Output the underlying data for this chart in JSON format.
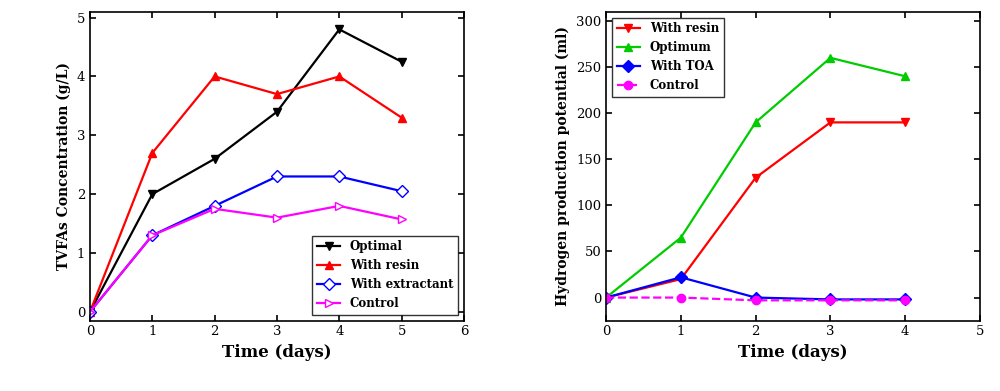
{
  "left": {
    "xlabel": "Time (days)",
    "ylabel": "TVFAs Concentration (g/L)",
    "xlim": [
      0,
      6
    ],
    "ylim": [
      -0.15,
      5.1
    ],
    "xticks": [
      0,
      1,
      2,
      3,
      4,
      5,
      6
    ],
    "yticks": [
      0,
      1,
      2,
      3,
      4,
      5
    ],
    "legend_loc": "lower right",
    "series": [
      {
        "label": "Optimal",
        "color": "#000000",
        "marker": "v",
        "marker_face": "#000000",
        "x": [
          0,
          1,
          2,
          3,
          4,
          5
        ],
        "y": [
          0,
          2.0,
          2.6,
          3.4,
          4.8,
          4.25
        ],
        "linestyle": "-"
      },
      {
        "label": "With resin",
        "color": "#ff0000",
        "marker": "^",
        "marker_face": "#ff0000",
        "x": [
          0,
          1,
          2,
          3,
          4,
          5
        ],
        "y": [
          0,
          2.7,
          4.0,
          3.7,
          4.0,
          3.3
        ],
        "linestyle": "-"
      },
      {
        "label": "With extractant",
        "color": "#0000ff",
        "marker": "D",
        "marker_face": "#ffffff",
        "x": [
          0,
          1,
          2,
          3,
          4,
          5
        ],
        "y": [
          0,
          1.3,
          1.8,
          2.3,
          2.3,
          2.05
        ],
        "linestyle": "-"
      },
      {
        "label": "Control",
        "color": "#ff00ff",
        "marker": ">",
        "marker_face": "#ffffff",
        "x": [
          0,
          1,
          2,
          3,
          4,
          5
        ],
        "y": [
          0,
          1.3,
          1.75,
          1.6,
          1.8,
          1.57
        ],
        "linestyle": "-"
      }
    ]
  },
  "right": {
    "xlabel": "Time (days)",
    "ylabel": "Hydrogen production potential (ml)",
    "xlim": [
      0,
      5
    ],
    "ylim": [
      -25,
      310
    ],
    "xticks": [
      0,
      1,
      2,
      3,
      4,
      5
    ],
    "yticks": [
      0,
      50,
      100,
      150,
      200,
      250,
      300
    ],
    "legend_loc": "upper left",
    "series": [
      {
        "label": "With resin",
        "color": "#ff0000",
        "marker": "v",
        "marker_face": "#ff0000",
        "x": [
          0,
          1,
          2,
          3,
          4
        ],
        "y": [
          0,
          20,
          130,
          190,
          190
        ],
        "linestyle": "-"
      },
      {
        "label": "Optimum",
        "color": "#00cc00",
        "marker": "^",
        "marker_face": "#00cc00",
        "x": [
          0,
          1,
          2,
          3,
          4
        ],
        "y": [
          0,
          65,
          190,
          260,
          240
        ],
        "linestyle": "-"
      },
      {
        "label": "With TOA",
        "color": "#0000ff",
        "marker": "D",
        "marker_face": "#0000ff",
        "x": [
          0,
          1,
          2,
          3,
          4
        ],
        "y": [
          0,
          22,
          0,
          -2,
          -2
        ],
        "linestyle": "-"
      },
      {
        "label": "Control",
        "color": "#ff00ff",
        "marker": "o",
        "marker_face": "#ff00ff",
        "x": [
          0,
          1,
          2,
          3,
          4
        ],
        "y": [
          0,
          0,
          -3,
          -3,
          -3
        ],
        "linestyle": "--"
      }
    ]
  },
  "fig_width": 10.0,
  "fig_height": 3.91,
  "dpi": 100
}
